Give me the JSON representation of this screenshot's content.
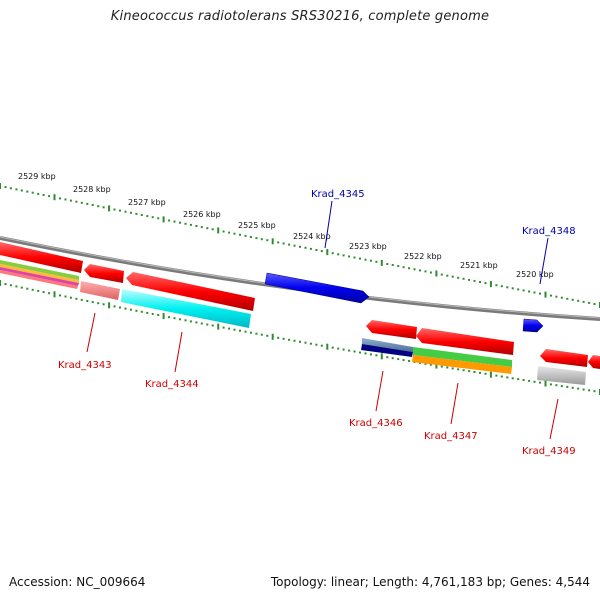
{
  "title": "Kineococcus radiotolerans SRS30216, complete genome",
  "footer": {
    "accession": "Accession: NC_009664",
    "summary": "Topology: linear; Length: 4,761,183 bp; Genes: 4,544"
  },
  "scale_labels": [
    "2529 kbp",
    "2528 kbp",
    "2527 kbp",
    "2526 kbp",
    "2525 kbp",
    "2524 kbp",
    "2523 kbp",
    "2522 kbp",
    "2521 kbp",
    "2520 kbp"
  ],
  "colors": {
    "backbone": "#808080",
    "scale_dots": "#2e8b2e",
    "forward_gene": "#0000dd",
    "reverse_gene": "#ff0000",
    "forward_label": "#0000aa",
    "reverse_label": "#cc0000"
  },
  "gene_labels": [
    {
      "name": "Krad_4345",
      "strand": "forward"
    },
    {
      "name": "Krad_4348",
      "strand": "forward"
    },
    {
      "name": "Krad_4343",
      "strand": "reverse"
    },
    {
      "name": "Krad_4344",
      "strand": "reverse"
    },
    {
      "name": "Krad_4346",
      "strand": "reverse"
    },
    {
      "name": "Krad_4347",
      "strand": "reverse"
    },
    {
      "name": "Krad_4349",
      "strand": "reverse"
    }
  ]
}
